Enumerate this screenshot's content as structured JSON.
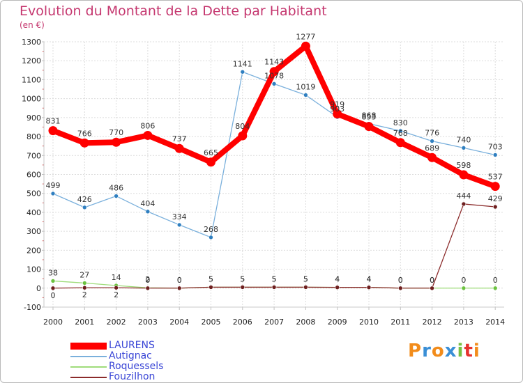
{
  "header": {
    "title": "Evolution du Montant de la Dette par Habitant",
    "subtitle": "(en €)"
  },
  "brand": {
    "text": "Proxiti",
    "letter_colors": [
      "#f28c1b",
      "#3a8fd6",
      "#f28c1b",
      "#3a8fd6",
      "#76c043",
      "#e6322f",
      "#f28c1b"
    ]
  },
  "chart_data": {
    "type": "line",
    "title": "Evolution du Montant de la Dette par Habitant",
    "subtitle": "(en €)",
    "xlabel": "",
    "ylabel": "",
    "x": [
      "2000",
      "2001",
      "2002",
      "2003",
      "2004",
      "2005",
      "2006",
      "2007",
      "2008",
      "2009",
      "2010",
      "2011",
      "2012",
      "2013",
      "2014"
    ],
    "ylim": [
      -100,
      1300
    ],
    "ytick_step": 100,
    "yticks": [
      "-100",
      "0",
      "100",
      "200",
      "300",
      "400",
      "500",
      "600",
      "700",
      "800",
      "900",
      "1000",
      "1100",
      "1200",
      "1300"
    ],
    "grid": true,
    "legend_position": "bottom-left",
    "series": [
      {
        "name": "LAURENS",
        "color": "#ff0000",
        "values": [
          831,
          766,
          770,
          806,
          737,
          665,
          804,
          1143,
          1277,
          919,
          853,
          768,
          689,
          598,
          537
        ],
        "labels": [
          "831",
          "766",
          "770",
          "806",
          "737",
          "665",
          "804",
          "1143",
          "1277",
          "919",
          "853",
          "768",
          "689",
          "598",
          "537"
        ],
        "label_pos": [
          "above",
          "above",
          "above",
          "above",
          "above",
          "above",
          "above",
          "above",
          "above",
          "above",
          "above",
          "above",
          "above",
          "above",
          "above"
        ]
      },
      {
        "name": "Autignac",
        "color": "#7ab0dc",
        "marker_color": "#2f7fc0",
        "values": [
          499,
          426,
          486,
          404,
          334,
          268,
          1141,
          1078,
          1019,
          903,
          868,
          830,
          776,
          740,
          703
        ],
        "labels": [
          "499",
          "426",
          "486",
          "404",
          "334",
          "268",
          "1141",
          "1078",
          "1019",
          "903",
          "868",
          "830",
          "776",
          "740",
          "703"
        ],
        "label_pos": [
          "above",
          "above",
          "above",
          "above",
          "above",
          "above",
          "above",
          "above",
          "above",
          "above",
          "above",
          "above",
          "above",
          "above",
          "above"
        ]
      },
      {
        "name": "Roquessels",
        "color": "#9fdc7a",
        "marker_color": "#6cc240",
        "values": [
          38,
          27,
          14,
          2,
          0,
          5,
          5,
          5,
          5,
          4,
          4,
          0,
          0,
          0,
          0
        ],
        "labels": [
          "38",
          "27",
          "14",
          "2",
          "0",
          "5",
          "5",
          "5",
          "5",
          "4",
          "4",
          "0",
          "0",
          "0",
          "0"
        ],
        "label_pos": [
          "above",
          "above",
          "above",
          "above",
          "above",
          "above",
          "above",
          "above",
          "above",
          "above",
          "above",
          "above",
          "above",
          "above",
          "above"
        ]
      },
      {
        "name": "Fouzilhon",
        "color": "#8b2b2b",
        "marker_color": "#6e1f1f",
        "values": [
          0,
          2,
          2,
          0,
          0,
          5,
          5,
          5,
          5,
          4,
          4,
          0,
          0,
          444,
          429
        ],
        "labels": [
          "0",
          "2",
          "2",
          "0",
          "0",
          "5",
          "5",
          "5",
          "5",
          "4",
          "4",
          "0",
          "0",
          "444",
          "429"
        ],
        "label_pos": [
          "below",
          "below",
          "below",
          "above",
          "above",
          "above",
          "above",
          "above",
          "above",
          "above",
          "above",
          "above",
          "above",
          "above",
          "above"
        ]
      }
    ]
  }
}
